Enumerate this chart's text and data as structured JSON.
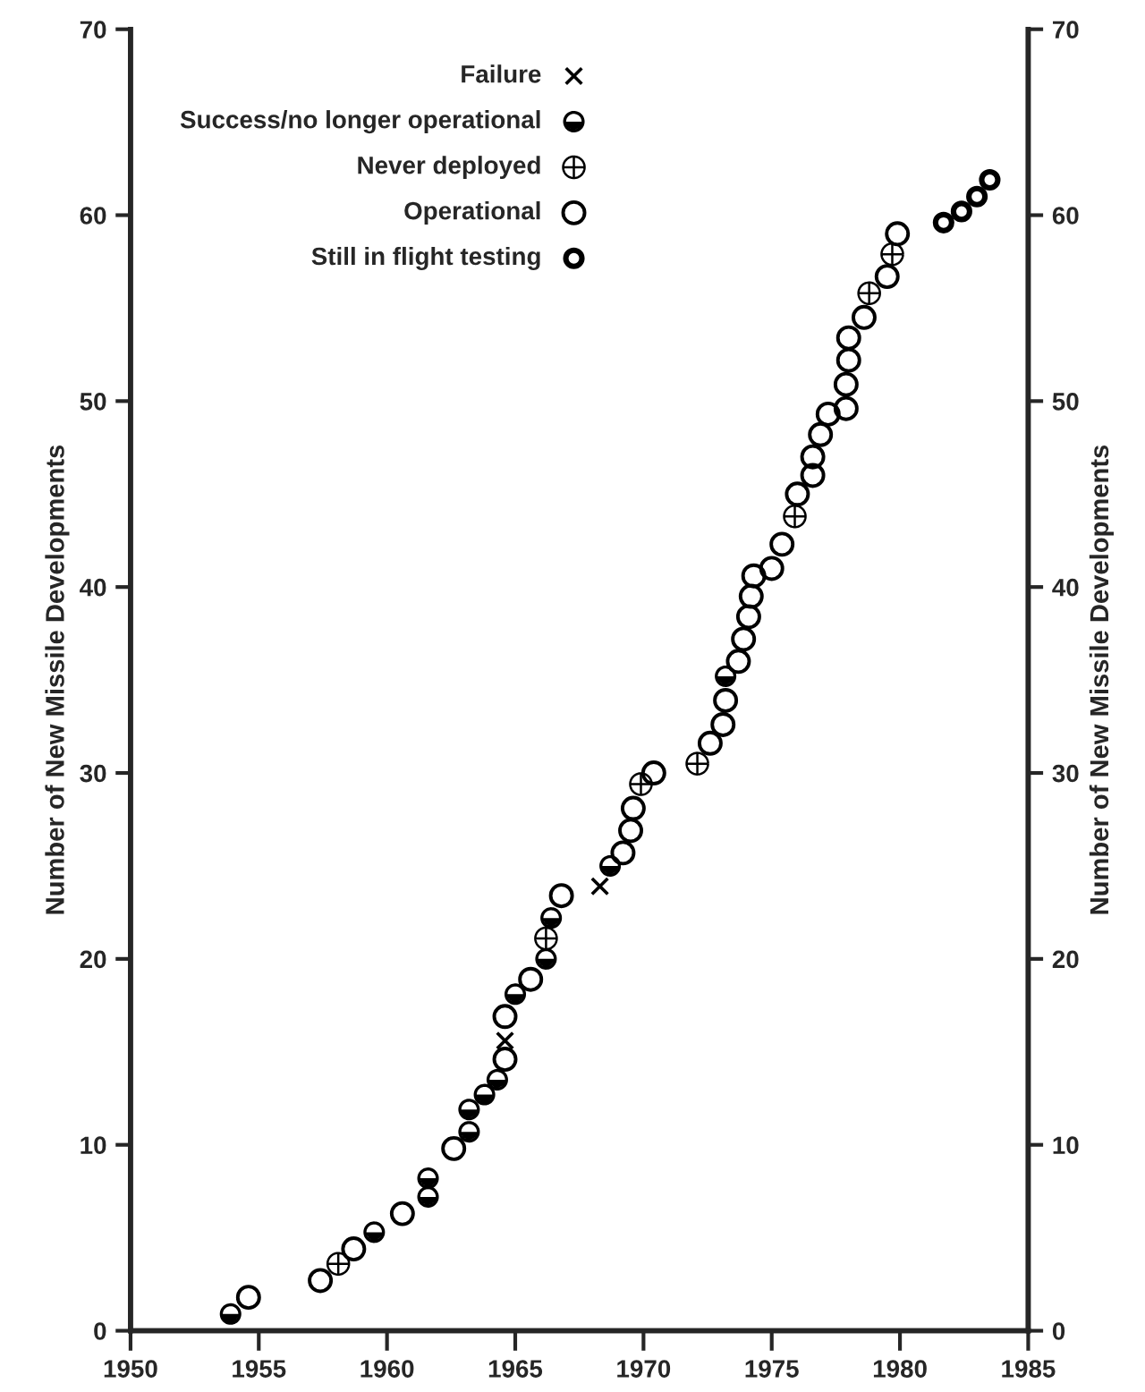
{
  "chart_data": {
    "type": "scatter",
    "ylabel": "Number of New Missile Developments",
    "y2label": "Number of New Missile Developments",
    "xlim": [
      1950,
      1985
    ],
    "xticks": [
      1950,
      1955,
      1960,
      1965,
      1970,
      1975,
      1980,
      1985
    ],
    "ylim": [
      0,
      70
    ],
    "yticks": [
      0,
      10,
      20,
      30,
      40,
      50,
      60,
      70
    ],
    "y2lim": [
      0,
      70
    ],
    "y2ticks": [
      0,
      10,
      20,
      30,
      40,
      50,
      60,
      70
    ],
    "grid": false,
    "legend": "top left",
    "series": [
      {
        "name": "Failure",
        "color": "#000000",
        "marker": "cross",
        "x": [
          1964.6,
          1968.3
        ],
        "values": [
          15.6,
          23.9
        ]
      },
      {
        "name": "Success/no longer operational",
        "color": "#000000",
        "marker": "circle",
        "x": [
          1953.9,
          1959.5,
          1961.6,
          1961.6,
          1963.2,
          1963.2,
          1963.8,
          1964.3,
          1965.0,
          1966.2,
          1966.4,
          1968.7,
          1973.2
        ],
        "values": [
          0.9,
          5.3,
          7.2,
          8.2,
          10.7,
          11.9,
          12.7,
          13.5,
          18.1,
          20.0,
          22.2,
          25.0,
          35.2
        ]
      },
      {
        "name": "Never deployed",
        "color": "#000000",
        "x": [
          1958.1,
          1966.2,
          1969.9,
          1972.1,
          1975.9,
          1978.8,
          1979.7
        ],
        "values": [
          3.6,
          21.1,
          29.4,
          30.5,
          43.8,
          55.8,
          57.9
        ]
      },
      {
        "name": "Operational",
        "color": "#000000",
        "marker": "circle",
        "x": [
          1954.6,
          1957.4,
          1958.7,
          1960.6,
          1962.6,
          1964.6,
          1964.6,
          1965.6,
          1966.8,
          1969.2,
          1969.5,
          1969.6,
          1970.4,
          1972.6,
          1973.1,
          1973.2,
          1973.7,
          1973.9,
          1974.1,
          1974.2,
          1974.3,
          1975.0,
          1975.4,
          1976.0,
          1976.6,
          1976.6,
          1976.9,
          1977.2,
          1977.9,
          1977.9,
          1978.0,
          1978.0,
          1978.6,
          1979.5,
          1979.9
        ],
        "values": [
          1.8,
          2.7,
          4.4,
          6.3,
          9.8,
          14.6,
          16.9,
          18.9,
          23.4,
          25.7,
          26.9,
          28.1,
          30.0,
          31.6,
          32.6,
          33.9,
          36.0,
          37.2,
          38.4,
          39.5,
          40.6,
          41.0,
          42.3,
          45.0,
          46.0,
          47.0,
          48.2,
          49.3,
          49.6,
          50.9,
          52.2,
          53.4,
          54.5,
          56.7,
          59.0
        ]
      },
      {
        "name": "Still in flight testing",
        "color": "#000000",
        "marker": "circle",
        "x": [
          1981.7,
          1982.4,
          1983.0,
          1983.5
        ],
        "values": [
          59.6,
          60.2,
          61.0,
          61.9
        ]
      }
    ]
  }
}
